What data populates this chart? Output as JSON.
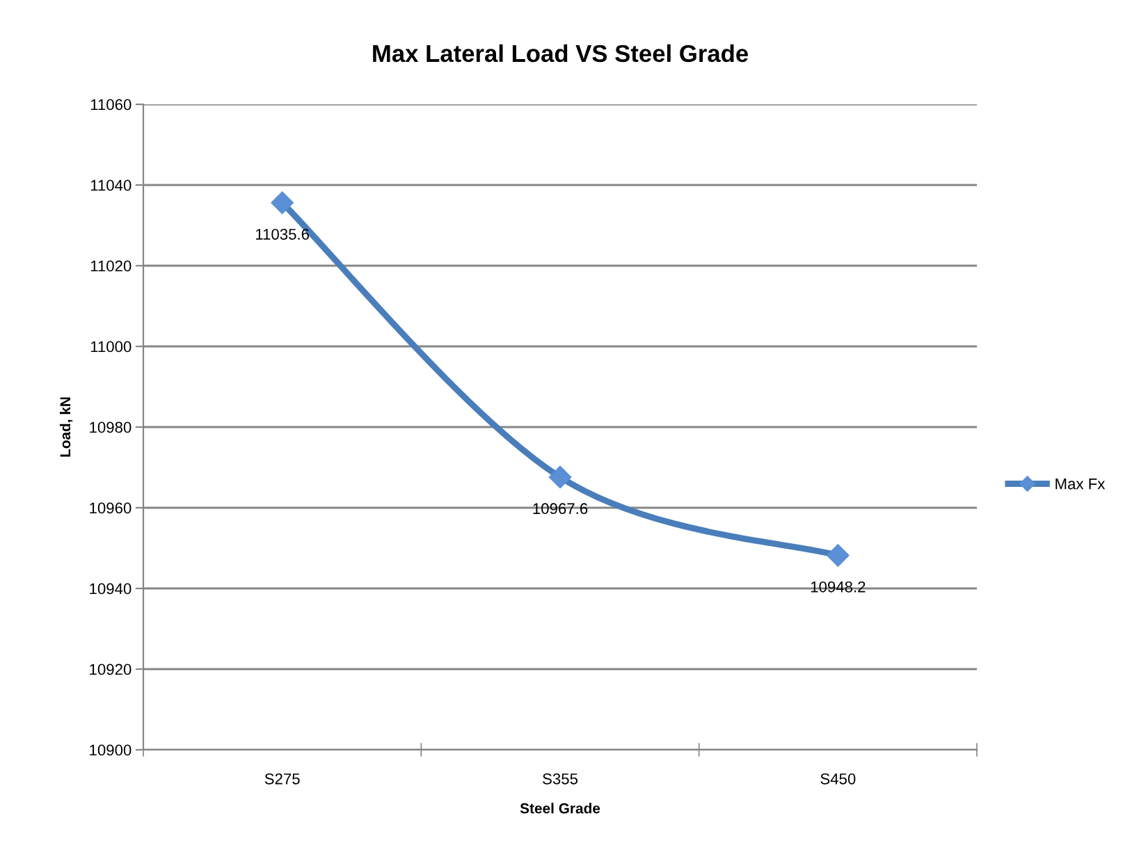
{
  "chart_data": {
    "type": "line",
    "title": "Max Lateral Load VS Steel Grade",
    "xlabel": "Steel Grade",
    "ylabel": "Load, kN",
    "categories": [
      "S275",
      "S355",
      "S450"
    ],
    "series": [
      {
        "name": "Max Fx",
        "color": "#4a7ebb",
        "values": [
          11035.6,
          10967.6,
          10948.2
        ]
      }
    ],
    "ylim": [
      10900,
      11060
    ],
    "yticks": [
      10900,
      10920,
      10940,
      10960,
      10980,
      11000,
      11020,
      11040,
      11060
    ],
    "grid": "y",
    "legend": "right",
    "marker": "diamond",
    "line_style": "solid",
    "data_labels": true
  }
}
